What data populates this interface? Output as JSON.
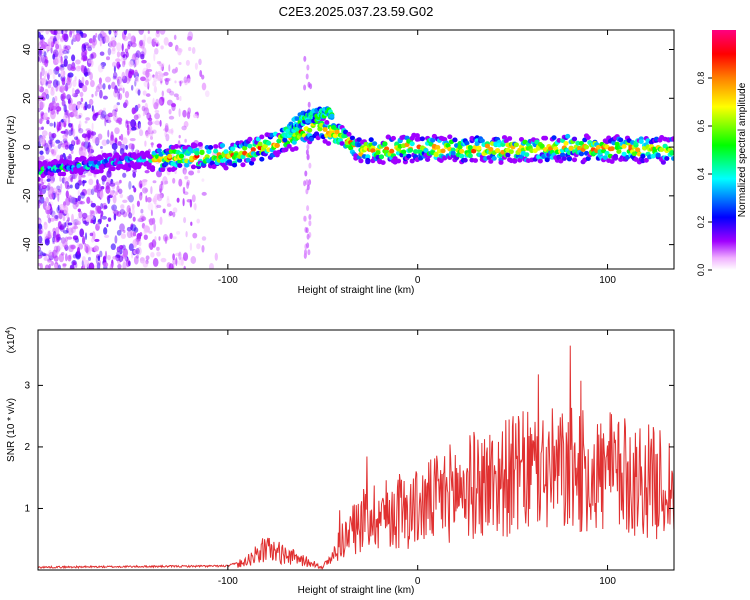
{
  "figure": {
    "title": "C2E3.2025.037.23.59.G02"
  },
  "chart_data": [
    {
      "type": "heatmap",
      "title": "C2E3.2025.037.23.59.G02",
      "xlabel": "Height of straight line (km)",
      "ylabel": "Frequency (Hz)",
      "xlim": [
        -200,
        135
      ],
      "ylim": [
        -50,
        48
      ],
      "xticks": [
        -100,
        0,
        100
      ],
      "yticks": [
        -40,
        -20,
        0,
        20,
        40
      ],
      "xtick_labels": [
        "-100",
        "0",
        "100"
      ],
      "ytick_labels": [
        "-40",
        "-20",
        "0",
        "20",
        "40"
      ],
      "colorbar": {
        "label": "Normalized spectral amplitude",
        "range": [
          0,
          1
        ],
        "ticks": [
          0.0,
          0.2,
          0.4,
          0.6,
          0.8
        ],
        "tick_labels": [
          "0.0",
          "0.2",
          "0.4",
          "0.6",
          "0.8"
        ],
        "colormap": [
          "#ffffff",
          "#ff00ff",
          "#8a00ff",
          "#0000ff",
          "#00ffff",
          "#00ff00",
          "#ffff00",
          "#ff8000",
          "#ff0000",
          "#ff0080"
        ]
      },
      "ridge": {
        "x": [
          -200,
          -180,
          -160,
          -140,
          -120,
          -100,
          -90,
          -80,
          -70,
          -60,
          -55,
          -50,
          -45,
          -40,
          -35,
          -30,
          -25,
          -20,
          -10,
          0,
          10,
          20,
          40,
          60,
          80,
          100,
          120,
          135
        ],
        "y": [
          -10,
          -8,
          -6,
          -5,
          -4,
          -3,
          -2,
          0,
          3,
          6,
          8,
          8,
          6,
          4,
          1,
          -2,
          -1,
          -1,
          -1,
          0,
          -1,
          -1,
          -1,
          -1,
          0,
          -1,
          -1,
          -1
        ]
      },
      "upper_branch": {
        "x": [
          -70,
          -65,
          -60,
          -55,
          -50,
          -45
        ],
        "y": [
          5,
          9,
          12,
          13,
          14,
          13
        ]
      },
      "grid": false
    },
    {
      "type": "line",
      "xlabel": "Height of straight line (km)",
      "ylabel": "SNR (10 * v/v)",
      "y_scale_note": "(x10",
      "y_scale_exp": "4",
      "xlim": [
        -200,
        135
      ],
      "ylim": [
        0,
        3.9
      ],
      "xticks": [
        -100,
        0,
        100
      ],
      "yticks": [
        1,
        2,
        3
      ],
      "xtick_labels": [
        "-100",
        "0",
        "100"
      ],
      "ytick_labels": [
        "1",
        "2",
        "3"
      ],
      "series": [
        {
          "color": "#e03030",
          "envelope_x": [
            -200,
            -150,
            -100,
            -90,
            -85,
            -80,
            -75,
            -70,
            -65,
            -60,
            -55,
            -50,
            -45,
            -40,
            -35,
            -30,
            -25,
            -20,
            -10,
            0,
            10,
            20,
            40,
            60,
            80,
            100,
            120,
            135
          ],
          "envelope_y": [
            0.03,
            0.04,
            0.05,
            0.15,
            0.25,
            0.35,
            0.3,
            0.25,
            0.2,
            0.15,
            0.1,
            0.05,
            0.2,
            0.5,
            0.6,
            0.8,
            0.9,
            0.9,
            0.95,
            1.0,
            1.15,
            1.3,
            1.45,
            1.6,
            1.6,
            1.55,
            1.45,
            1.35
          ]
        }
      ],
      "grid": false
    }
  ]
}
